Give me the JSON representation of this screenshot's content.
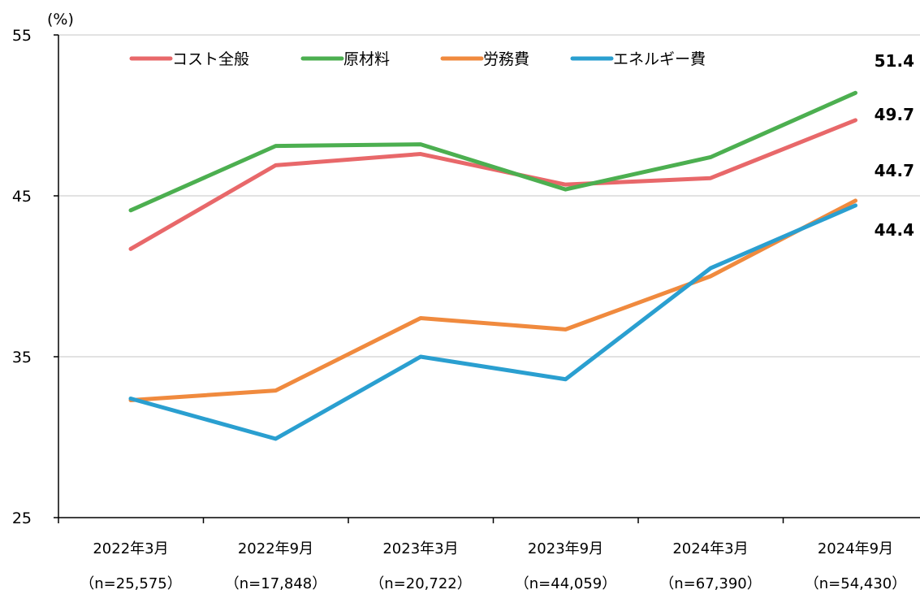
{
  "chart_data": {
    "type": "line",
    "unit_label": "(%)",
    "ylim": [
      25,
      55
    ],
    "yticks": [
      25,
      35,
      45,
      55
    ],
    "grid": true,
    "legend_position": "top",
    "categories": [
      "2022年3月",
      "2022年9月",
      "2023年3月",
      "2023年9月",
      "2024年3月",
      "2024年9月"
    ],
    "category_sublabels": [
      "（n=25,575）",
      "（n=17,848）",
      "（n=20,722）",
      "（n=44,059）",
      "（n=67,390）",
      "（n=54,430）"
    ],
    "series": [
      {
        "name": "コスト全般",
        "color": "#e8686a",
        "values": [
          41.7,
          46.9,
          47.6,
          45.7,
          46.1,
          49.7
        ],
        "last_label": "49.7"
      },
      {
        "name": "原材料",
        "color": "#4caf50",
        "values": [
          44.1,
          48.1,
          48.2,
          45.4,
          47.4,
          51.4
        ],
        "last_label": "51.4"
      },
      {
        "name": "労務費",
        "color": "#f08a3e",
        "values": [
          32.3,
          32.9,
          37.4,
          36.7,
          40.0,
          44.7
        ],
        "last_label": "44.7"
      },
      {
        "name": "エネルギー費",
        "color": "#2a9fd0",
        "values": [
          32.4,
          29.9,
          35.0,
          33.6,
          40.5,
          44.4
        ],
        "last_label": "44.4"
      }
    ]
  }
}
